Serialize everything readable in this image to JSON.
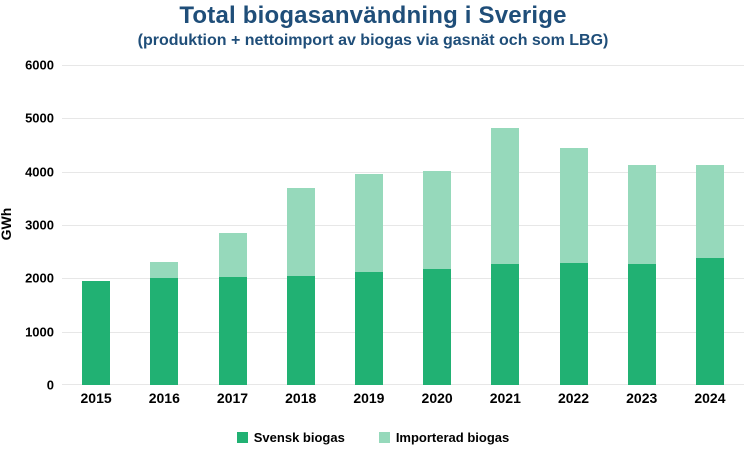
{
  "title": "Total biogasanvändning i Sverige",
  "subtitle": "(produktion + nettoimport av biogas via gasnät och som LBG)",
  "colors": {
    "title_text": "#1F4E79",
    "svensk_biogas": "#21B173",
    "importerad_biogas": "#96D9BB",
    "gridline": "#E7E7E7",
    "axis_text": "#000000"
  },
  "chart_data": {
    "type": "bar",
    "stacked": true,
    "title": "Total biogasanvändning i Sverige",
    "subtitle": "(produktion + nettoimport av biogas via gasnät och som LBG)",
    "xlabel": "",
    "ylabel": "GWh",
    "ylim": [
      0,
      6000
    ],
    "yticks": [
      0,
      1000,
      2000,
      3000,
      4000,
      5000,
      6000
    ],
    "grid": "horizontal",
    "legend_position": "bottom",
    "categories": [
      "2015",
      "2016",
      "2017",
      "2018",
      "2019",
      "2020",
      "2021",
      "2022",
      "2023",
      "2024"
    ],
    "series": [
      {
        "name": "Svensk biogas",
        "color": "#21B173",
        "values": [
          1950,
          2010,
          2030,
          2050,
          2120,
          2170,
          2260,
          2290,
          2260,
          2380
        ]
      },
      {
        "name": "Importerad biogas",
        "color": "#96D9BB",
        "values": [
          0,
          290,
          820,
          1640,
          1830,
          1850,
          2560,
          2160,
          1860,
          1740
        ]
      }
    ],
    "totals": [
      1950,
      2300,
      2850,
      3690,
      3950,
      4020,
      4820,
      4450,
      4120,
      4120
    ]
  },
  "legend": [
    {
      "label": "Svensk biogas",
      "color": "#21B173"
    },
    {
      "label": "Importerad biogas",
      "color": "#96D9BB"
    }
  ]
}
